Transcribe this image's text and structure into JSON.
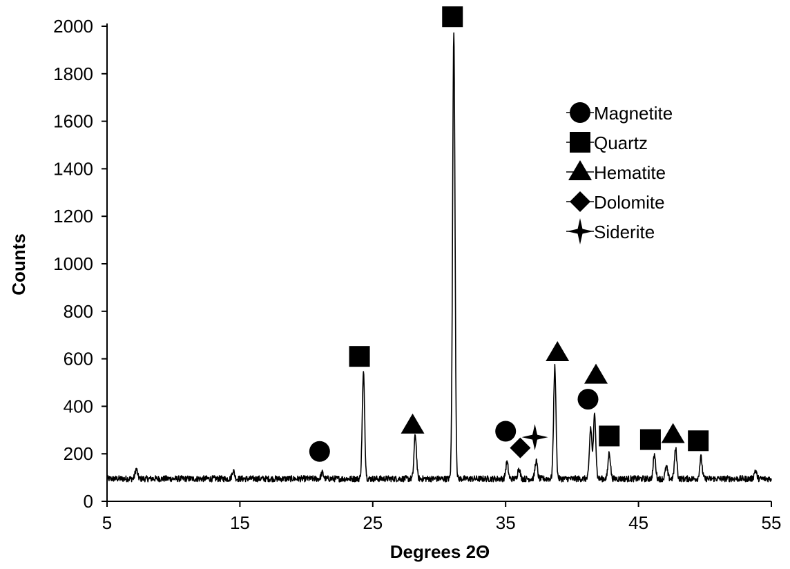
{
  "chart_data": {
    "type": "line",
    "title": "",
    "xlabel": "Degrees 2Θ",
    "ylabel": "Counts",
    "xlim": [
      5,
      55
    ],
    "ylim": [
      0,
      2000
    ],
    "xticks": [
      5,
      15,
      25,
      35,
      45,
      55
    ],
    "yticks": [
      0,
      200,
      400,
      600,
      800,
      1000,
      1200,
      1400,
      1600,
      1800,
      2000
    ],
    "grid": false,
    "legend_position": "top-right",
    "baseline": 95,
    "series": [
      {
        "type": "line",
        "color": "#000000",
        "peaks": [
          {
            "x": 7.2,
            "y": 135
          },
          {
            "x": 14.5,
            "y": 130
          },
          {
            "x": 21.2,
            "y": 120
          },
          {
            "x": 24.3,
            "y": 540
          },
          {
            "x": 28.2,
            "y": 280
          },
          {
            "x": 31.1,
            "y": 1975
          },
          {
            "x": 35.1,
            "y": 165
          },
          {
            "x": 36.0,
            "y": 140
          },
          {
            "x": 37.3,
            "y": 170
          },
          {
            "x": 38.7,
            "y": 565
          },
          {
            "x": 41.4,
            "y": 310
          },
          {
            "x": 41.7,
            "y": 365
          },
          {
            "x": 42.8,
            "y": 205
          },
          {
            "x": 46.2,
            "y": 195
          },
          {
            "x": 47.1,
            "y": 145
          },
          {
            "x": 47.8,
            "y": 220
          },
          {
            "x": 49.7,
            "y": 185
          },
          {
            "x": 53.8,
            "y": 130
          }
        ]
      }
    ],
    "legend": [
      {
        "label": "Magnetite",
        "marker": "circle"
      },
      {
        "label": "Quartz",
        "marker": "square"
      },
      {
        "label": "Hematite",
        "marker": "triangle"
      },
      {
        "label": "Dolomite",
        "marker": "diamond"
      },
      {
        "label": "Siderite",
        "marker": "star4"
      }
    ],
    "markers": [
      {
        "mineral": "Magnetite",
        "marker": "circle",
        "x": 21.0,
        "y": 210
      },
      {
        "mineral": "Quartz",
        "marker": "square",
        "x": 24.0,
        "y": 610
      },
      {
        "mineral": "Hematite",
        "marker": "triangle",
        "x": 28.0,
        "y": 320
      },
      {
        "mineral": "Quartz",
        "marker": "square",
        "x": 31.0,
        "y": 2040
      },
      {
        "mineral": "Magnetite",
        "marker": "circle",
        "x": 35.0,
        "y": 295
      },
      {
        "mineral": "Dolomite",
        "marker": "diamond",
        "x": 36.1,
        "y": 225
      },
      {
        "mineral": "Siderite",
        "marker": "star4",
        "x": 37.2,
        "y": 270
      },
      {
        "mineral": "Hematite",
        "marker": "triangle",
        "x": 38.9,
        "y": 625
      },
      {
        "mineral": "Magnetite",
        "marker": "circle",
        "x": 41.2,
        "y": 430
      },
      {
        "mineral": "Hematite",
        "marker": "triangle",
        "x": 41.8,
        "y": 530
      },
      {
        "mineral": "Quartz",
        "marker": "square",
        "x": 42.8,
        "y": 275
      },
      {
        "mineral": "Quartz",
        "marker": "square",
        "x": 45.9,
        "y": 260
      },
      {
        "mineral": "Hematite",
        "marker": "triangle",
        "x": 47.6,
        "y": 280
      },
      {
        "mineral": "Quartz",
        "marker": "square",
        "x": 49.5,
        "y": 255
      }
    ]
  }
}
